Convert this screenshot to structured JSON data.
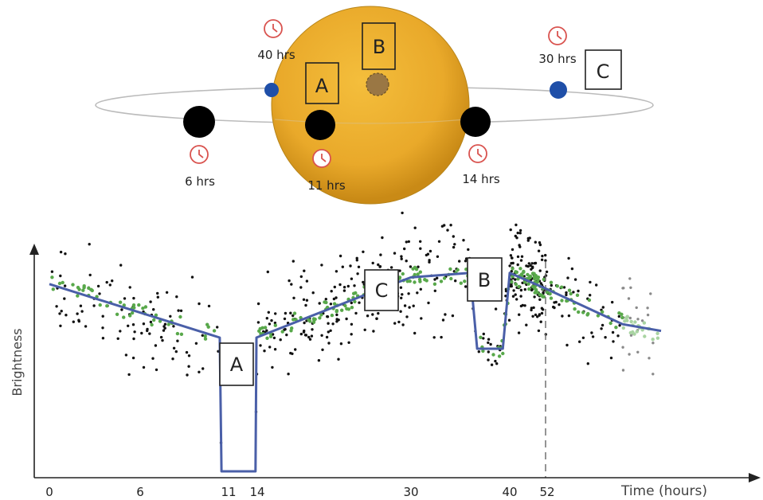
{
  "orbit_diagram": {
    "boxes": {
      "a": "A",
      "b": "B",
      "c": "C"
    },
    "clock_labels": {
      "t40": "40 hrs",
      "t30": "30 hrs",
      "t6": "6 hrs",
      "t11": "11 hrs",
      "t14": "14 hrs"
    },
    "colors": {
      "star": "#e9a92a",
      "planet_large": "#000000",
      "planet_small": "#1f4fa8",
      "planet_eclipsed": "#9a7744",
      "clock": "#d9534f",
      "orbit": "#bbbbbb"
    }
  },
  "chart_data": {
    "type": "line",
    "ylabel": "Brightness",
    "xlabel": "Time (hours)",
    "x_ticks": [
      "0",
      "6",
      "11",
      "14",
      "30",
      "40",
      "52"
    ],
    "dashed_marker_x": 52,
    "annotations": [
      "A",
      "C",
      "B"
    ],
    "colors": {
      "model": "#4a5fa8",
      "points": "#111111",
      "binned": "#58a84a"
    },
    "model_curve": [
      {
        "x": 0,
        "y": 0.84
      },
      {
        "x": 10.5,
        "y": 0.6
      },
      {
        "x": 10.6,
        "y": 0.0
      },
      {
        "x": 13.9,
        "y": 0.0
      },
      {
        "x": 14,
        "y": 0.6
      },
      {
        "x": 27.5,
        "y": 0.83
      },
      {
        "x": 30,
        "y": 0.87
      },
      {
        "x": 36,
        "y": 0.89
      },
      {
        "x": 36.7,
        "y": 0.55
      },
      {
        "x": 39.3,
        "y": 0.55
      },
      {
        "x": 40,
        "y": 0.89
      },
      {
        "x": 52,
        "y": 0.82
      },
      {
        "x": 58,
        "y": 0.66
      },
      {
        "x": 61,
        "y": 0.63
      }
    ]
  }
}
